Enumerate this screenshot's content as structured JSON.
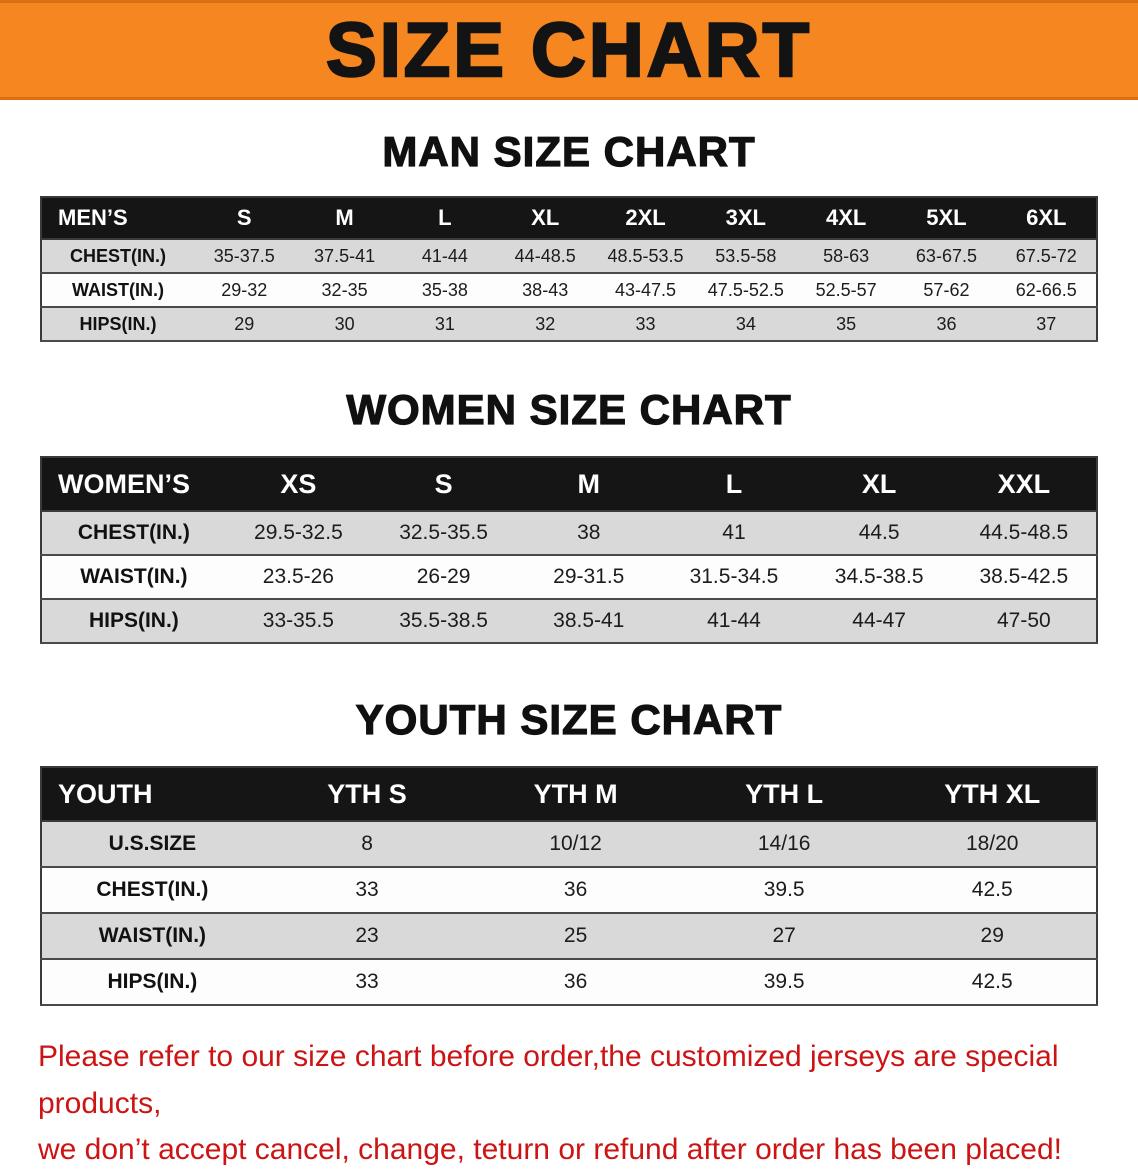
{
  "banner": {
    "title": "SIZE CHART",
    "bg_color": "#f6861f",
    "text_color": "#131313"
  },
  "sections": [
    {
      "heading": "MAN SIZE CHART",
      "table": {
        "header": [
          "MEN’S",
          "S",
          "M",
          "L",
          "XL",
          "2XL",
          "3XL",
          "4XL",
          "5XL",
          "6XL"
        ],
        "rows": [
          [
            "CHEST(IN.)",
            "35-37.5",
            "37.5-41",
            "41-44",
            "44-48.5",
            "48.5-53.5",
            "53.5-58",
            "58-63",
            "63-67.5",
            "67.5-72"
          ],
          [
            "WAIST(IN.)",
            "29-32",
            "32-35",
            "35-38",
            "38-43",
            "43-47.5",
            "47.5-52.5",
            "52.5-57",
            "57-62",
            "62-66.5"
          ],
          [
            "HIPS(IN.)",
            "29",
            "30",
            "31",
            "32",
            "33",
            "34",
            "35",
            "36",
            "37"
          ]
        ]
      }
    },
    {
      "heading": "WOMEN SIZE CHART",
      "table": {
        "header": [
          "WOMEN’S",
          "XS",
          "S",
          "M",
          "L",
          "XL",
          "XXL"
        ],
        "rows": [
          [
            "CHEST(IN.)",
            "29.5-32.5",
            "32.5-35.5",
            "38",
            "41",
            "44.5",
            "44.5-48.5"
          ],
          [
            "WAIST(IN.)",
            "23.5-26",
            "26-29",
            "29-31.5",
            "31.5-34.5",
            "34.5-38.5",
            "38.5-42.5"
          ],
          [
            "HIPS(IN.)",
            "33-35.5",
            "35.5-38.5",
            "38.5-41",
            "41-44",
            "44-47",
            "47-50"
          ]
        ]
      }
    },
    {
      "heading": "YOUTH SIZE CHART",
      "table": {
        "header": [
          "YOUTH",
          "YTH S",
          "YTH M",
          "YTH L",
          "YTH XL"
        ],
        "rows": [
          [
            "U.S.SIZE",
            "8",
            "10/12",
            "14/16",
            "18/20"
          ],
          [
            "CHEST(IN.)",
            "33",
            "36",
            "39.5",
            "42.5"
          ],
          [
            "WAIST(IN.)",
            "23",
            "25",
            "27",
            "29"
          ],
          [
            "HIPS(IN.)",
            "33",
            "36",
            "39.5",
            "42.5"
          ]
        ]
      }
    }
  ],
  "disclaimer": {
    "line1": "Please refer to our size chart before order,the customized jerseys are special products,",
    "line2": "we don’t accept cancel, change, teturn or refund after order has been placed!",
    "color": "#cc1414"
  },
  "colors": {
    "table_header_bg": "#151515",
    "table_header_text": "#ffffff",
    "shaded_row_bg": "#d9d9d9",
    "plain_row_bg": "#fdfdfd"
  }
}
